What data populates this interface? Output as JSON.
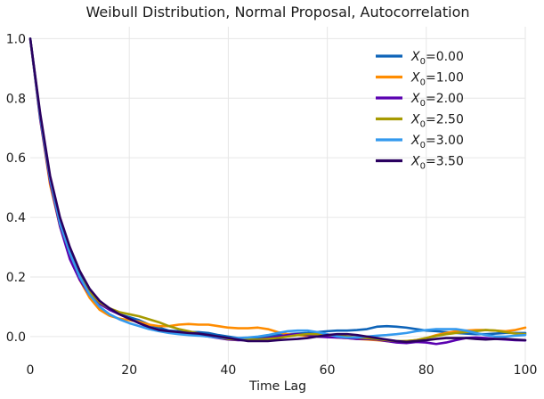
{
  "chart_data": {
    "type": "line",
    "title": "Weibull Distribution, Normal Proposal, Autocorrelation",
    "xlabel": "Time Lag",
    "ylabel": "",
    "xlim": [
      0,
      100
    ],
    "ylim": [
      -0.09,
      1.04
    ],
    "xticks": [
      0,
      20,
      40,
      60,
      80,
      100
    ],
    "yticks": [
      0.0,
      0.2,
      0.4,
      0.6,
      0.8,
      1.0
    ],
    "xtick_labels": [
      "0",
      "20",
      "40",
      "60",
      "80",
      "100"
    ],
    "ytick_labels": [
      "0.0",
      "0.2",
      "0.4",
      "0.6",
      "0.8",
      "1.0"
    ],
    "grid": true,
    "legend_position": "top-right",
    "series": [
      {
        "name_main": "X",
        "name_sub": "0",
        "name_rest": "=0.00",
        "color": "#0d63b8",
        "x": [
          0,
          2,
          4,
          6,
          8,
          10,
          12,
          14,
          16,
          18,
          20,
          22,
          24,
          26,
          28,
          30,
          32,
          34,
          36,
          38,
          40,
          42,
          44,
          46,
          48,
          50,
          52,
          54,
          56,
          58,
          60,
          62,
          64,
          66,
          68,
          70,
          72,
          74,
          76,
          78,
          80,
          82,
          84,
          86,
          88,
          90,
          92,
          94,
          96,
          98,
          100
        ],
        "values": [
          1.0,
          0.74,
          0.53,
          0.39,
          0.29,
          0.21,
          0.155,
          0.115,
          0.09,
          0.075,
          0.065,
          0.055,
          0.04,
          0.03,
          0.02,
          0.018,
          0.015,
          0.015,
          0.012,
          0.005,
          0.0,
          -0.005,
          -0.008,
          -0.005,
          0.0,
          0.005,
          0.008,
          0.01,
          0.012,
          0.015,
          0.018,
          0.02,
          0.02,
          0.022,
          0.025,
          0.033,
          0.035,
          0.033,
          0.03,
          0.025,
          0.02,
          0.018,
          0.015,
          0.012,
          0.01,
          0.008,
          0.008,
          0.01,
          0.012,
          0.012,
          0.012
        ]
      },
      {
        "name_main": "X",
        "name_sub": "0",
        "name_rest": "=1.00",
        "color": "#ff8c00",
        "x": [
          0,
          2,
          4,
          6,
          8,
          10,
          12,
          14,
          16,
          18,
          20,
          22,
          24,
          26,
          28,
          30,
          32,
          34,
          36,
          38,
          40,
          42,
          44,
          46,
          48,
          50,
          52,
          54,
          56,
          58,
          60,
          62,
          64,
          66,
          68,
          70,
          72,
          74,
          76,
          78,
          80,
          82,
          84,
          86,
          88,
          90,
          92,
          94,
          96,
          98,
          100
        ],
        "values": [
          1.0,
          0.73,
          0.51,
          0.37,
          0.27,
          0.19,
          0.13,
          0.09,
          0.07,
          0.06,
          0.055,
          0.05,
          0.04,
          0.035,
          0.035,
          0.04,
          0.042,
          0.04,
          0.04,
          0.035,
          0.03,
          0.028,
          0.028,
          0.03,
          0.025,
          0.015,
          0.008,
          0.005,
          0.003,
          0.0,
          0.0,
          -0.003,
          -0.005,
          -0.008,
          -0.01,
          -0.012,
          -0.015,
          -0.018,
          -0.015,
          -0.012,
          -0.005,
          0.005,
          0.012,
          0.018,
          0.02,
          0.022,
          0.022,
          0.02,
          0.018,
          0.022,
          0.03
        ]
      },
      {
        "name_main": "X",
        "name_sub": "0",
        "name_rest": "=2.00",
        "color": "#5a00b0",
        "x": [
          0,
          2,
          4,
          6,
          8,
          10,
          12,
          14,
          16,
          18,
          20,
          22,
          24,
          26,
          28,
          30,
          32,
          34,
          36,
          38,
          40,
          42,
          44,
          46,
          48,
          50,
          52,
          54,
          56,
          58,
          60,
          62,
          64,
          66,
          68,
          70,
          72,
          74,
          76,
          78,
          80,
          82,
          84,
          86,
          88,
          90,
          92,
          94,
          96,
          98,
          100
        ],
        "values": [
          1.0,
          0.73,
          0.52,
          0.37,
          0.26,
          0.19,
          0.14,
          0.11,
          0.09,
          0.075,
          0.06,
          0.045,
          0.03,
          0.02,
          0.015,
          0.012,
          0.01,
          0.005,
          0.0,
          -0.005,
          -0.01,
          -0.012,
          -0.012,
          -0.01,
          -0.005,
          0.0,
          0.005,
          0.008,
          0.005,
          0.0,
          -0.002,
          -0.003,
          -0.005,
          -0.008,
          -0.008,
          -0.01,
          -0.015,
          -0.02,
          -0.022,
          -0.018,
          -0.02,
          -0.025,
          -0.02,
          -0.012,
          -0.005,
          -0.003,
          -0.005,
          -0.008,
          -0.01,
          -0.012,
          -0.013
        ]
      },
      {
        "name_main": "X",
        "name_sub": "0",
        "name_rest": "=2.50",
        "color": "#a69a00",
        "x": [
          0,
          2,
          4,
          6,
          8,
          10,
          12,
          14,
          16,
          18,
          20,
          22,
          24,
          26,
          28,
          30,
          32,
          34,
          36,
          38,
          40,
          42,
          44,
          46,
          48,
          50,
          52,
          54,
          56,
          58,
          60,
          62,
          64,
          66,
          68,
          70,
          72,
          74,
          76,
          78,
          80,
          82,
          84,
          86,
          88,
          90,
          92,
          94,
          96,
          98,
          100
        ],
        "values": [
          1.0,
          0.74,
          0.53,
          0.38,
          0.28,
          0.2,
          0.15,
          0.115,
          0.095,
          0.082,
          0.075,
          0.068,
          0.058,
          0.048,
          0.035,
          0.025,
          0.018,
          0.01,
          0.003,
          -0.003,
          -0.008,
          -0.01,
          -0.01,
          -0.01,
          -0.008,
          -0.005,
          0.0,
          0.005,
          0.008,
          0.008,
          0.005,
          0.003,
          0.0,
          -0.003,
          -0.005,
          -0.008,
          -0.012,
          -0.015,
          -0.015,
          -0.012,
          -0.005,
          0.002,
          0.008,
          0.012,
          0.015,
          0.018,
          0.022,
          0.02,
          0.015,
          0.01,
          0.008
        ]
      },
      {
        "name_main": "X",
        "name_sub": "0",
        "name_rest": "=3.00",
        "color": "#3399ee",
        "x": [
          0,
          2,
          4,
          6,
          8,
          10,
          12,
          14,
          16,
          18,
          20,
          22,
          24,
          26,
          28,
          30,
          32,
          34,
          36,
          38,
          40,
          42,
          44,
          46,
          48,
          50,
          52,
          54,
          56,
          58,
          60,
          62,
          64,
          66,
          68,
          70,
          72,
          74,
          76,
          78,
          80,
          82,
          84,
          86,
          88,
          90,
          92,
          94,
          96,
          98,
          100
        ],
        "values": [
          1.0,
          0.74,
          0.53,
          0.38,
          0.28,
          0.2,
          0.14,
          0.1,
          0.075,
          0.058,
          0.045,
          0.035,
          0.025,
          0.018,
          0.012,
          0.008,
          0.005,
          0.003,
          0.0,
          -0.003,
          -0.005,
          -0.005,
          -0.003,
          0.0,
          0.005,
          0.012,
          0.018,
          0.02,
          0.02,
          0.015,
          0.008,
          0.0,
          -0.003,
          -0.003,
          0.0,
          0.003,
          0.005,
          0.008,
          0.012,
          0.018,
          0.022,
          0.025,
          0.025,
          0.025,
          0.02,
          0.012,
          0.005,
          0.0,
          0.0,
          0.003,
          0.005
        ]
      },
      {
        "name_main": "X",
        "name_sub": "0",
        "name_rest": "=3.50",
        "color": "#2a0060",
        "x": [
          0,
          2,
          4,
          6,
          8,
          10,
          12,
          14,
          16,
          18,
          20,
          22,
          24,
          26,
          28,
          30,
          32,
          34,
          36,
          38,
          40,
          42,
          44,
          46,
          48,
          50,
          52,
          54,
          56,
          58,
          60,
          62,
          64,
          66,
          68,
          70,
          72,
          74,
          76,
          78,
          80,
          82,
          84,
          86,
          88,
          90,
          92,
          94,
          96,
          98,
          100
        ],
        "values": [
          1.0,
          0.75,
          0.54,
          0.4,
          0.3,
          0.22,
          0.16,
          0.12,
          0.095,
          0.075,
          0.06,
          0.045,
          0.032,
          0.022,
          0.018,
          0.015,
          0.012,
          0.01,
          0.005,
          0.0,
          -0.005,
          -0.01,
          -0.015,
          -0.015,
          -0.015,
          -0.012,
          -0.01,
          -0.008,
          -0.005,
          0.0,
          0.005,
          0.008,
          0.008,
          0.005,
          0.0,
          -0.005,
          -0.01,
          -0.015,
          -0.018,
          -0.015,
          -0.012,
          -0.008,
          -0.005,
          -0.005,
          -0.005,
          -0.008,
          -0.01,
          -0.008,
          -0.008,
          -0.01,
          -0.012
        ]
      }
    ]
  }
}
